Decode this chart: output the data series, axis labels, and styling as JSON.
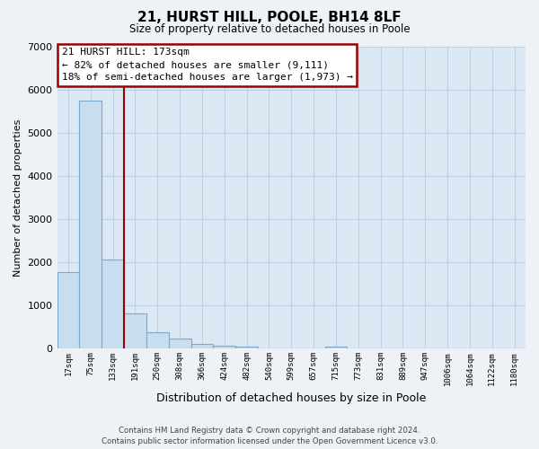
{
  "title": "21, HURST HILL, POOLE, BH14 8LF",
  "subtitle": "Size of property relative to detached houses in Poole",
  "xlabel": "Distribution of detached houses by size in Poole",
  "ylabel": "Number of detached properties",
  "bar_labels": [
    "17sqm",
    "75sqm",
    "133sqm",
    "191sqm",
    "250sqm",
    "308sqm",
    "366sqm",
    "424sqm",
    "482sqm",
    "540sqm",
    "599sqm",
    "657sqm",
    "715sqm",
    "773sqm",
    "831sqm",
    "889sqm",
    "947sqm",
    "1006sqm",
    "1064sqm",
    "1122sqm",
    "1180sqm"
  ],
  "bar_values": [
    1780,
    5740,
    2060,
    820,
    370,
    230,
    110,
    60,
    50,
    0,
    0,
    0,
    50,
    0,
    0,
    0,
    0,
    0,
    0,
    0,
    0
  ],
  "bar_color": "#c8ddf0",
  "bar_edge_color": "#7aaacc",
  "highlight_color": "#990000",
  "red_line_x": 2.5,
  "annotation_title": "21 HURST HILL: 173sqm",
  "annotation_line1": "← 82% of detached houses are smaller (9,111)",
  "annotation_line2": "18% of semi-detached houses are larger (1,973) →",
  "annotation_box_color": "#ffffff",
  "annotation_box_edge": "#990000",
  "ylim": [
    0,
    7000
  ],
  "yticks": [
    0,
    1000,
    2000,
    3000,
    4000,
    5000,
    6000,
    7000
  ],
  "footer_line1": "Contains HM Land Registry data © Crown copyright and database right 2024.",
  "footer_line2": "Contains public sector information licensed under the Open Government Licence v3.0.",
  "bg_color": "#eef2f7",
  "plot_bg_color": "#dce8f4",
  "grid_color": "#c0d0e0"
}
